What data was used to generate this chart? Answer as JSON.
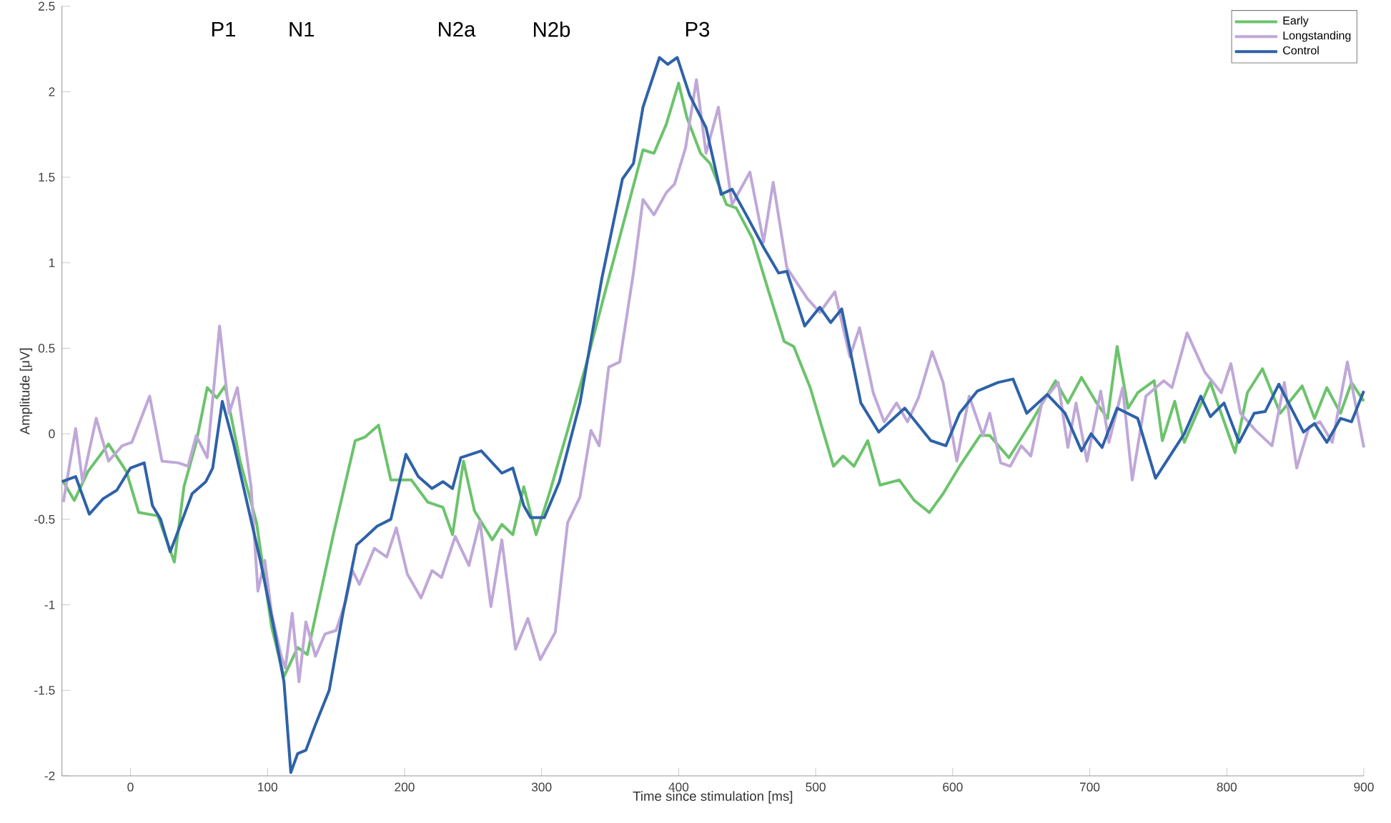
{
  "chart_data": {
    "type": "line",
    "xlabel": "Time since stimulation [ms]",
    "ylabel": "Amplitude [μV]",
    "xlim": [
      -50,
      900
    ],
    "xticks": [
      0,
      100,
      200,
      300,
      400,
      500,
      600,
      700,
      800,
      900
    ],
    "ylim": [
      -2,
      2.5
    ],
    "yticks": [
      -2,
      -1.5,
      -1,
      -0.5,
      0,
      0.5,
      1,
      1.5,
      2,
      2.5
    ],
    "grid": false,
    "legend": "top right",
    "marker": "none",
    "line_style": "solid",
    "annotations": [
      "P1",
      "N1",
      "N2a",
      "N2b",
      "P3"
    ],
    "series": [
      {
        "name": "Early",
        "color": "#6cc36c",
        "x": [
          -49,
          -41,
          -31,
          -16,
          -3,
          6,
          20,
          32,
          39,
          48,
          56,
          63,
          69,
          80,
          92,
          103,
          112,
          122,
          129,
          139,
          148,
          164,
          171,
          181,
          190,
          205,
          217,
          228,
          235,
          243,
          251,
          264,
          271,
          279,
          287,
          296,
          306,
          319,
          332,
          347,
          362,
          374,
          382,
          391,
          400,
          406,
          416,
          423,
          435,
          442,
          454,
          465,
          477,
          484,
          496,
          513,
          520,
          528,
          538,
          547,
          561,
          572,
          583,
          593,
          605,
          620,
          627,
          641,
          656,
          675,
          684,
          694,
          705,
          713,
          720,
          728,
          735,
          747,
          753,
          762,
          769,
          788,
          806,
          815,
          826,
          839,
          855,
          864,
          873,
          883,
          891,
          900
        ],
        "values": [
          -0.28,
          -0.39,
          -0.22,
          -0.06,
          -0.22,
          -0.46,
          -0.48,
          -0.75,
          -0.31,
          -0.05,
          0.27,
          0.21,
          0.28,
          -0.16,
          -0.52,
          -1.13,
          -1.42,
          -1.25,
          -1.29,
          -0.92,
          -0.59,
          -0.04,
          -0.02,
          0.05,
          -0.27,
          -0.27,
          -0.4,
          -0.43,
          -0.59,
          -0.16,
          -0.45,
          -0.62,
          -0.53,
          -0.59,
          -0.31,
          -0.59,
          -0.34,
          0.02,
          0.39,
          0.85,
          1.3,
          1.66,
          1.64,
          1.81,
          2.05,
          1.85,
          1.64,
          1.58,
          1.34,
          1.32,
          1.14,
          0.85,
          0.54,
          0.51,
          0.27,
          -0.19,
          -0.13,
          -0.19,
          -0.04,
          -0.3,
          -0.27,
          -0.39,
          -0.46,
          -0.35,
          -0.19,
          -0.01,
          -0.01,
          -0.14,
          0.05,
          0.31,
          0.18,
          0.33,
          0.18,
          0.09,
          0.51,
          0.15,
          0.24,
          0.31,
          -0.04,
          0.19,
          -0.05,
          0.3,
          -0.11,
          0.24,
          0.38,
          0.12,
          0.28,
          0.09,
          0.27,
          0.12,
          0.3,
          0.19
        ]
      },
      {
        "name": "Longstanding",
        "color": "#bfa8d8",
        "x": [
          -49,
          -40,
          -35,
          -25,
          -16,
          -6,
          1,
          14,
          23,
          35,
          42,
          48,
          56,
          65,
          72,
          78,
          88,
          93,
          98,
          103,
          110,
          113,
          118,
          123,
          128,
          135,
          142,
          150,
          157,
          162,
          167,
          178,
          187,
          194,
          202,
          212,
          220,
          227,
          237,
          247,
          255,
          263,
          271,
          281,
          290,
          299,
          310,
          319,
          328,
          336,
          342,
          349,
          357,
          367,
          374,
          382,
          391,
          397,
          405,
          413,
          420,
          429,
          439,
          452,
          462,
          469,
          479,
          494,
          503,
          514,
          525,
          532,
          542,
          550,
          559,
          567,
          575,
          585,
          593,
          603,
          612,
          622,
          627,
          635,
          642,
          650,
          657,
          665,
          677,
          684,
          690,
          698,
          708,
          714,
          724,
          731,
          741,
          754,
          760,
          771,
          784,
          796,
          803,
          810,
          821,
          833,
          842,
          851,
          860,
          868,
          877,
          888,
          900
        ],
        "values": [
          -0.4,
          0.03,
          -0.28,
          0.09,
          -0.16,
          -0.07,
          -0.05,
          0.22,
          -0.16,
          -0.17,
          -0.19,
          -0.01,
          -0.14,
          0.63,
          0.12,
          0.27,
          -0.31,
          -0.92,
          -0.74,
          -1.05,
          -1.3,
          -1.37,
          -1.05,
          -1.45,
          -1.1,
          -1.3,
          -1.17,
          -1.15,
          -0.98,
          -0.8,
          -0.88,
          -0.67,
          -0.72,
          -0.55,
          -0.82,
          -0.96,
          -0.8,
          -0.84,
          -0.6,
          -0.77,
          -0.51,
          -1.01,
          -0.62,
          -1.26,
          -1.08,
          -1.32,
          -1.16,
          -0.52,
          -0.37,
          0.02,
          -0.07,
          0.39,
          0.42,
          0.94,
          1.37,
          1.28,
          1.41,
          1.46,
          1.67,
          2.07,
          1.64,
          1.91,
          1.34,
          1.53,
          1.12,
          1.47,
          0.97,
          0.79,
          0.71,
          0.83,
          0.45,
          0.62,
          0.24,
          0.07,
          0.18,
          0.07,
          0.21,
          0.48,
          0.3,
          -0.16,
          0.22,
          -0.01,
          0.12,
          -0.17,
          -0.19,
          -0.07,
          -0.13,
          0.18,
          0.3,
          -0.08,
          0.18,
          -0.16,
          0.25,
          -0.05,
          0.27,
          -0.27,
          0.22,
          0.31,
          0.27,
          0.59,
          0.36,
          0.24,
          0.41,
          0.12,
          0.02,
          -0.07,
          0.3,
          -0.2,
          0.04,
          0.07,
          -0.05,
          0.42,
          -0.08
        ]
      },
      {
        "name": "Control",
        "color": "#2e62a8",
        "x": [
          -50,
          -40,
          -30,
          -20,
          -10,
          0,
          10,
          16,
          22,
          29,
          38,
          45,
          55,
          60,
          67,
          75,
          85,
          95,
          105,
          112,
          117,
          122,
          128,
          135,
          145,
          155,
          165,
          172,
          180,
          190,
          201,
          210,
          220,
          228,
          235,
          241,
          256,
          271,
          279,
          287,
          292,
          302,
          313,
          328,
          344,
          359,
          367,
          374,
          386,
          392,
          399,
          408,
          420,
          431,
          439,
          450,
          462,
          473,
          479,
          492,
          503,
          511,
          519,
          533,
          546,
          565,
          584,
          595,
          605,
          618,
          633,
          644,
          654,
          669,
          682,
          694,
          701,
          709,
          720,
          735,
          748,
          769,
          781,
          788,
          798,
          809,
          820,
          828,
          838,
          856,
          864,
          873,
          883,
          891,
          900
        ],
        "values": [
          -0.28,
          -0.25,
          -0.47,
          -0.38,
          -0.33,
          -0.2,
          -0.17,
          -0.42,
          -0.5,
          -0.69,
          -0.5,
          -0.35,
          -0.28,
          -0.2,
          0.19,
          -0.05,
          -0.4,
          -0.75,
          -1.15,
          -1.45,
          -1.98,
          -1.87,
          -1.85,
          -1.7,
          -1.5,
          -1.05,
          -0.65,
          -0.6,
          -0.54,
          -0.5,
          -0.12,
          -0.25,
          -0.32,
          -0.28,
          -0.32,
          -0.14,
          -0.1,
          -0.23,
          -0.2,
          -0.42,
          -0.49,
          -0.49,
          -0.28,
          0.18,
          0.91,
          1.49,
          1.58,
          1.91,
          2.2,
          2.16,
          2.2,
          1.98,
          1.79,
          1.4,
          1.43,
          1.27,
          1.09,
          0.94,
          0.95,
          0.63,
          0.74,
          0.65,
          0.73,
          0.18,
          0.01,
          0.15,
          -0.04,
          -0.07,
          0.12,
          0.25,
          0.3,
          0.32,
          0.12,
          0.23,
          0.12,
          -0.1,
          0,
          -0.08,
          0.15,
          0.09,
          -0.26,
          0,
          0.22,
          0.1,
          0.18,
          -0.05,
          0.12,
          0.13,
          0.29,
          0.01,
          0.06,
          -0.05,
          0.09,
          0.07,
          0.25
        ]
      }
    ]
  }
}
